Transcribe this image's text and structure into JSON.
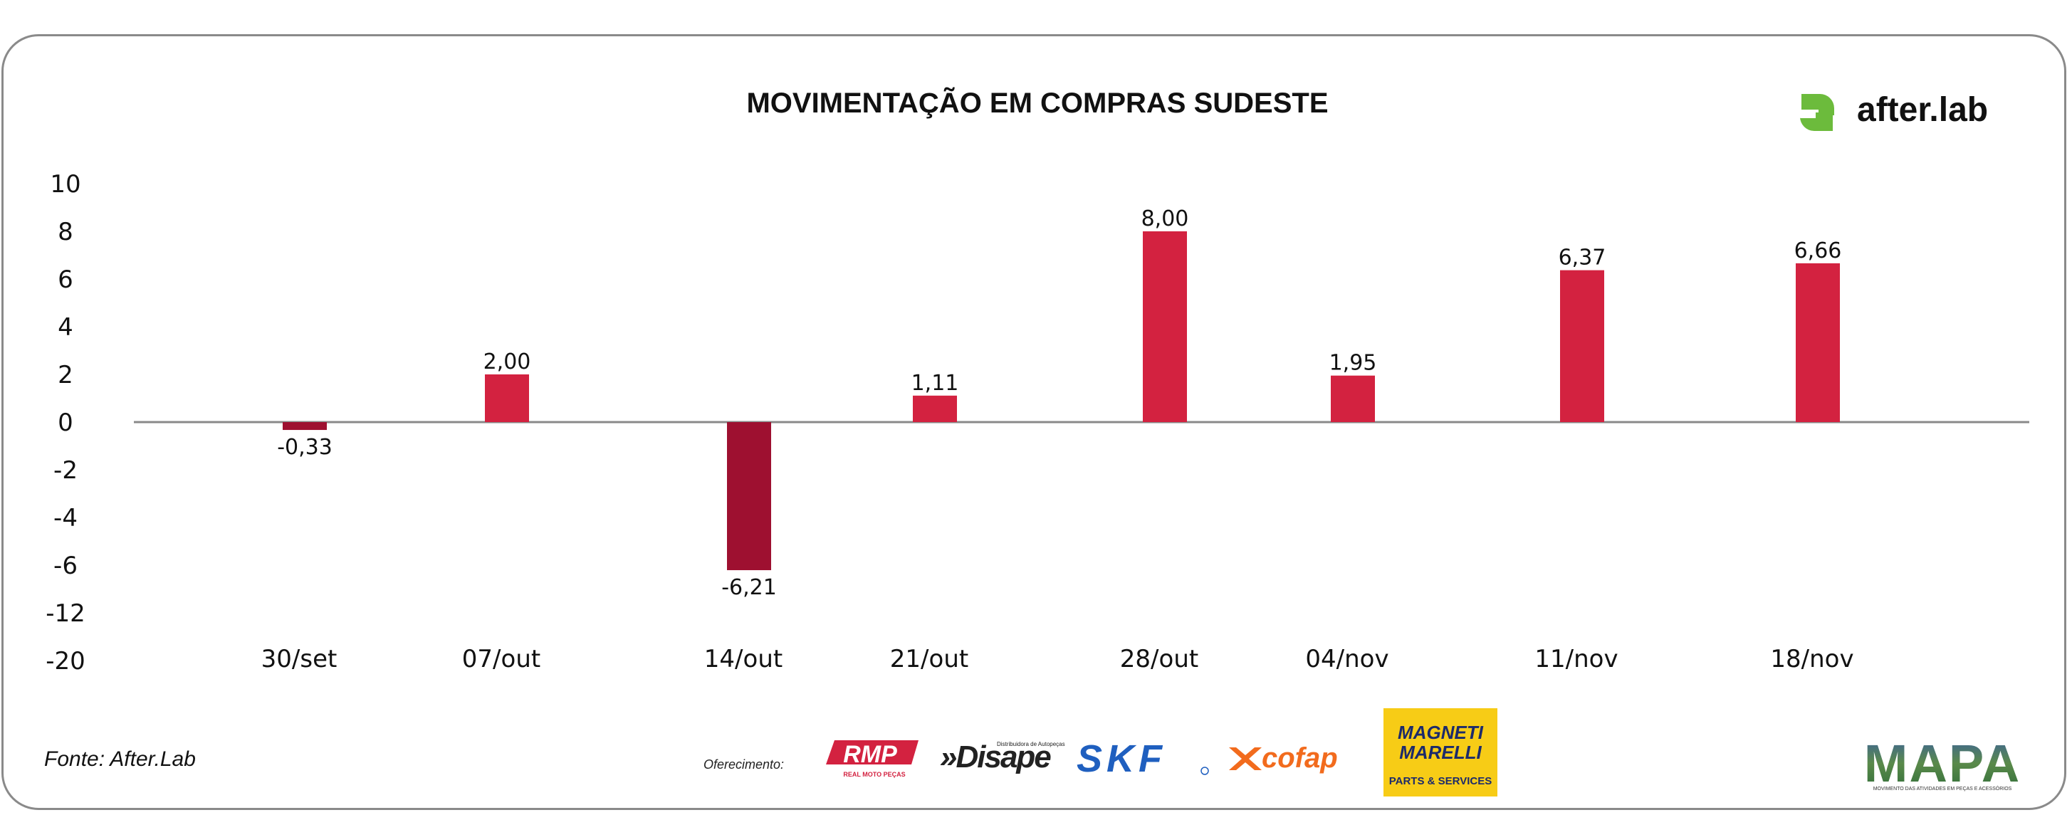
{
  "chart_data": {
    "type": "bar",
    "title": "MOVIMENTAÇÃO EM COMPRAS SUDESTE",
    "xlabel": "",
    "ylabel": "",
    "categories": [
      "30/set",
      "07/out",
      "14/out",
      "21/out",
      "28/out",
      "04/nov",
      "11/nov",
      "18/nov"
    ],
    "values": [
      -0.33,
      2.0,
      -6.21,
      1.11,
      8.0,
      1.95,
      6.37,
      6.66
    ],
    "value_labels": [
      "-0,33",
      "2,00",
      "-6,21",
      "1,11",
      "8,00",
      "1,95",
      "6,37",
      "6,66"
    ],
    "y_ticks": [
      "10",
      "8",
      "6",
      "4",
      "2",
      "0",
      "-2",
      "-4",
      "-6",
      "-12",
      "-20"
    ],
    "grid": false,
    "legend": "none",
    "colors": {
      "positive": "#d32240",
      "negative": "#9e1030",
      "axis": "#8a8a8a"
    }
  },
  "source_text": "Fonte: After.Lab",
  "sponsor_label": "Oferecimento:",
  "logos": {
    "afterlab": {
      "text": "after.lab",
      "color": "#6cbb3c"
    },
    "rmp": {
      "text": "RMP",
      "subtext": "REAL MOTO PEÇAS",
      "color": "#d32240"
    },
    "disape": {
      "text": "»Disape",
      "subtext": "Distribuidora de Autopeças",
      "color": "#222222"
    },
    "skf": {
      "text": "SKF",
      "color": "#1f5fbf"
    },
    "cofap": {
      "text": "cofap",
      "color": "#f26b1d"
    },
    "magneti": {
      "line1": "MAGNETI",
      "line2": "MARELLI",
      "subtext": "PARTS & SERVICES",
      "bg": "#f7cc16"
    },
    "mapa": {
      "text": "MAPA",
      "subtext": "MOVIMENTO DAS ATIVIDADES EM PEÇAS E ACESSÓRIOS"
    }
  }
}
